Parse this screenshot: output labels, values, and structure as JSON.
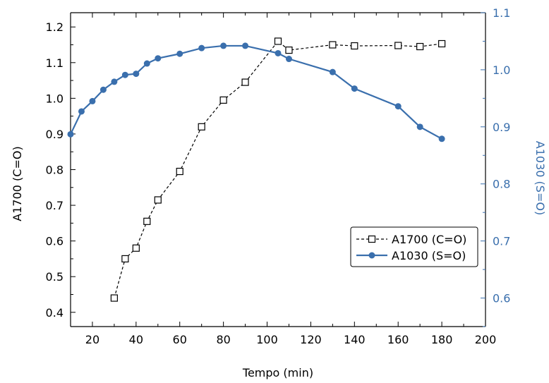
{
  "chart_data": {
    "type": "line",
    "title": "",
    "xlabel": "Tempo (min)",
    "xlim": [
      10,
      200
    ],
    "x_ticks": [
      20,
      40,
      60,
      80,
      100,
      120,
      140,
      160,
      180,
      200
    ],
    "y_left": {
      "label": "A1700 (C=O)",
      "lim": [
        0.36,
        1.24
      ],
      "ticks": [
        0.4,
        0.5,
        0.6,
        0.7,
        0.8,
        0.9,
        1.0,
        1.1,
        1.2
      ],
      "tick_labels": [
        "0.4",
        "0.5",
        "0.6",
        "0.7",
        "0.8",
        "0.9",
        "1.0",
        "1.1",
        "1.2"
      ]
    },
    "y_right": {
      "label": "A1030 (S=O)",
      "lim": [
        0.55,
        1.1
      ],
      "ticks": [
        0.6,
        0.7,
        0.8,
        0.9,
        1.0,
        1.1
      ],
      "tick_labels": [
        "0.6",
        "0.7",
        "0.8",
        "0.9",
        "1.0",
        "1.1"
      ],
      "color": "#3a6fad"
    },
    "legend": {
      "position": "lower-right"
    },
    "series": [
      {
        "name": "A1700 (C=O)",
        "axis": "left",
        "style": "dashed",
        "marker": "open-square",
        "color": "#000000",
        "x": [
          30,
          35,
          40,
          45,
          50,
          60,
          70,
          80,
          90,
          105,
          110,
          130,
          140,
          160,
          170,
          180
        ],
        "y": [
          0.44,
          0.55,
          0.58,
          0.655,
          0.715,
          0.795,
          0.92,
          0.995,
          1.045,
          1.16,
          1.135,
          1.15,
          1.147,
          1.148,
          1.145,
          1.153
        ]
      },
      {
        "name": "A1030 (S=O)",
        "axis": "right",
        "style": "solid",
        "marker": "filled-circle",
        "color": "#3a6fad",
        "x": [
          10,
          15,
          20,
          25,
          30,
          35,
          40,
          45,
          50,
          60,
          70,
          80,
          90,
          105,
          110,
          130,
          140,
          160,
          170,
          180
        ],
        "y": [
          0.887,
          0.927,
          0.945,
          0.965,
          0.979,
          0.991,
          0.993,
          1.011,
          1.02,
          1.028,
          1.038,
          1.042,
          1.042,
          1.029,
          1.019,
          0.996,
          0.967,
          0.936,
          0.9,
          0.879
        ]
      }
    ]
  }
}
